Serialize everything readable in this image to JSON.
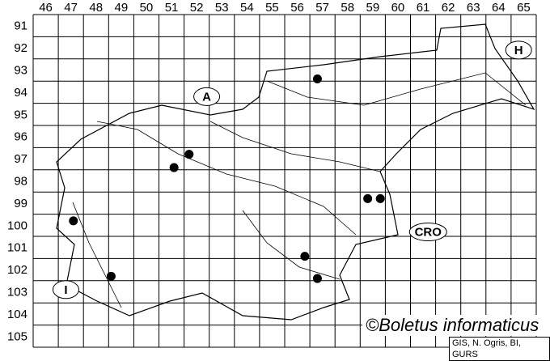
{
  "map": {
    "grid": {
      "columns_from": 46,
      "columns_to": 65,
      "rows_from": 91,
      "rows_to": 105
    },
    "records": [
      {
        "e": 56.8,
        "n": 93.4
      },
      {
        "e": 51.7,
        "n": 96.8
      },
      {
        "e": 51.1,
        "n": 97.4
      },
      {
        "e": 58.8,
        "n": 98.8
      },
      {
        "e": 59.3,
        "n": 98.8
      },
      {
        "e": 47.1,
        "n": 99.8
      },
      {
        "e": 56.3,
        "n": 101.4
      },
      {
        "e": 56.8,
        "n": 102.4
      },
      {
        "e": 48.6,
        "n": 102.3
      }
    ],
    "country_labels": [
      {
        "text": "A",
        "e": 52.4,
        "n": 94.2
      },
      {
        "text": "H",
        "e": 64.8,
        "n": 92.1
      },
      {
        "text": "CRO",
        "e": 61.2,
        "n": 100.3
      },
      {
        "text": "I",
        "e": 46.8,
        "n": 102.9
      }
    ],
    "colors": {
      "grid": "#000000",
      "dot": "#000000",
      "border": "#000000"
    }
  },
  "credit": "©Boletus informaticus",
  "source": "GIS, N. Ogris, BI, GURS"
}
